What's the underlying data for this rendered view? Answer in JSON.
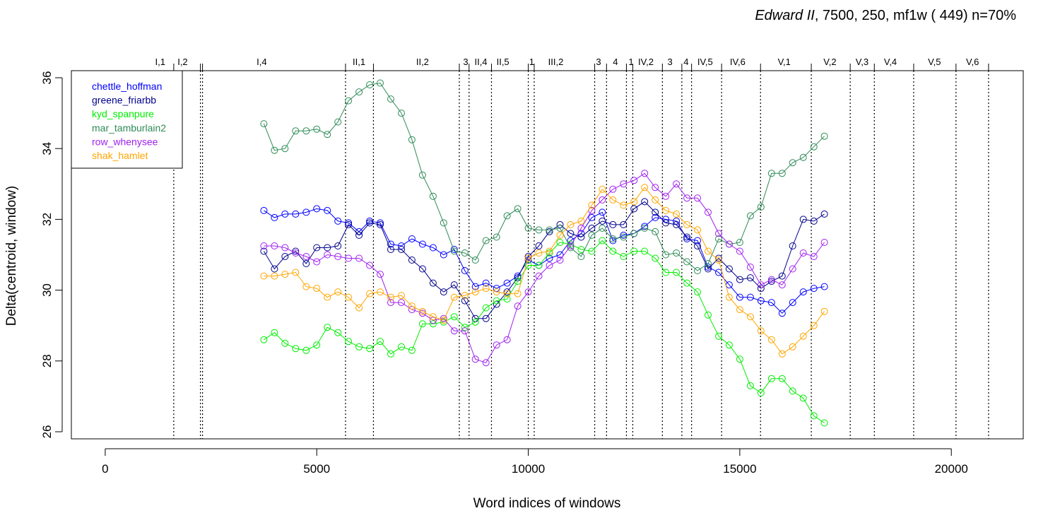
{
  "chart_data": {
    "type": "line",
    "title_italic": "Edward II",
    "title_rest": ", 7500, 250, mf1w ( 449)   n=70%",
    "xlabel": "Word indices of windows",
    "ylabel": "Delta(centroid, window)",
    "xlim": [
      -800,
      21700
    ],
    "ylim": [
      25.8,
      36.2
    ],
    "x_ticks": [
      0,
      5000,
      10000,
      15000,
      20000
    ],
    "y_ticks": [
      26,
      28,
      30,
      32,
      34,
      36
    ],
    "legend_position": "top-left",
    "x": [
      3750,
      4000,
      4250,
      4500,
      4750,
      5000,
      5250,
      5500,
      5750,
      6000,
      6250,
      6500,
      6750,
      7000,
      7250,
      7500,
      7750,
      8000,
      8250,
      8500,
      8750,
      9000,
      9250,
      9500,
      9750,
      10000,
      10250,
      10500,
      10750,
      11000,
      11250,
      11500,
      11750,
      12000,
      12250,
      12500,
      12750,
      13000,
      13250,
      13500,
      13750,
      14000,
      14250,
      14500,
      14750,
      15000,
      15250,
      15500,
      15750,
      16000,
      16250,
      16500,
      16750,
      17000
    ],
    "series": [
      {
        "name": "chettle_hoffman",
        "color": "#0000ff",
        "values": [
          32.25,
          32.05,
          32.15,
          32.15,
          32.2,
          32.3,
          32.25,
          31.95,
          31.9,
          31.65,
          31.95,
          31.9,
          31.3,
          31.25,
          31.45,
          31.3,
          31.2,
          31.0,
          31.15,
          30.55,
          30.1,
          30.2,
          30.05,
          30.2,
          30.4,
          30.85,
          30.7,
          30.9,
          31.0,
          31.4,
          31.6,
          32.05,
          32.2,
          31.4,
          31.55,
          31.6,
          31.8,
          32.05,
          32.0,
          31.95,
          31.45,
          31.4,
          30.65,
          30.5,
          30.15,
          29.8,
          29.8,
          29.7,
          29.65,
          29.35,
          29.65,
          29.95,
          30.05,
          30.1
        ]
      },
      {
        "name": "greene_friarbb",
        "color": "#00008b",
        "values": [
          31.1,
          30.6,
          30.95,
          31.1,
          30.75,
          31.2,
          31.2,
          31.25,
          31.85,
          31.55,
          31.9,
          31.85,
          31.15,
          31.15,
          30.85,
          30.6,
          30.2,
          29.95,
          30.15,
          29.7,
          29.2,
          29.2,
          29.6,
          29.95,
          30.35,
          30.95,
          31.25,
          31.65,
          31.85,
          31.6,
          31.5,
          31.75,
          31.95,
          31.85,
          31.85,
          32.3,
          32.5,
          32.2,
          31.9,
          31.85,
          31.5,
          31.25,
          30.6,
          30.9,
          30.6,
          30.3,
          30.35,
          30.05,
          30.25,
          30.4,
          31.25,
          32.0,
          31.95,
          32.15
        ]
      },
      {
        "name": "kyd_spanpure",
        "color": "#00ee00",
        "values": [
          28.6,
          28.8,
          28.5,
          28.35,
          28.3,
          28.45,
          28.95,
          28.8,
          28.55,
          28.4,
          28.35,
          28.55,
          28.2,
          28.4,
          28.3,
          29.05,
          29.05,
          29.1,
          29.25,
          28.95,
          29.1,
          29.5,
          29.7,
          29.75,
          30.25,
          30.7,
          30.7,
          31.05,
          31.35,
          31.3,
          31.15,
          31.1,
          31.4,
          31.1,
          30.95,
          31.1,
          31.1,
          30.9,
          30.5,
          30.5,
          30.2,
          29.95,
          29.3,
          28.7,
          28.45,
          28.05,
          27.3,
          27.1,
          27.5,
          27.5,
          27.15,
          26.95,
          26.45,
          26.25
        ]
      },
      {
        "name": "mar_tamburlain2",
        "color": "#2e8b57",
        "values": [
          34.7,
          33.95,
          34.0,
          34.5,
          34.5,
          34.55,
          34.4,
          34.75,
          35.35,
          35.6,
          35.8,
          35.85,
          35.4,
          35.0,
          34.25,
          33.25,
          32.65,
          31.9,
          31.1,
          31.05,
          30.85,
          31.4,
          31.5,
          32.1,
          32.3,
          31.75,
          31.7,
          31.7,
          31.75,
          31.2,
          30.95,
          31.55,
          31.75,
          31.45,
          31.5,
          31.6,
          31.75,
          31.65,
          31.0,
          31.05,
          30.8,
          30.55,
          30.75,
          31.45,
          31.3,
          31.35,
          32.1,
          32.35,
          33.3,
          33.3,
          33.6,
          33.75,
          34.05,
          34.35
        ]
      },
      {
        "name": "row_whenysee",
        "color": "#a020f0",
        "values": [
          31.25,
          31.25,
          31.2,
          31.05,
          30.95,
          30.8,
          31.0,
          30.95,
          30.9,
          30.9,
          30.7,
          30.45,
          29.65,
          29.65,
          29.45,
          29.35,
          29.15,
          29.2,
          28.85,
          28.85,
          28.05,
          27.95,
          28.45,
          28.6,
          29.55,
          29.95,
          30.4,
          30.7,
          30.85,
          31.25,
          31.75,
          32.25,
          32.55,
          32.85,
          33.0,
          33.1,
          33.3,
          32.9,
          32.65,
          33.0,
          32.6,
          32.6,
          32.2,
          31.6,
          31.3,
          31.1,
          30.65,
          30.15,
          30.3,
          30.15,
          30.6,
          31.05,
          30.95,
          31.35
        ]
      },
      {
        "name": "shak_hamlet",
        "color": "#ffa500",
        "values": [
          30.4,
          30.4,
          30.45,
          30.5,
          30.1,
          30.05,
          29.8,
          29.95,
          29.8,
          29.5,
          29.9,
          29.95,
          29.8,
          29.85,
          29.55,
          29.4,
          29.25,
          29.15,
          29.8,
          29.85,
          29.95,
          30.05,
          29.95,
          29.9,
          29.9,
          30.9,
          31.05,
          31.1,
          31.55,
          31.85,
          31.95,
          32.4,
          32.85,
          32.55,
          32.4,
          32.5,
          32.9,
          32.55,
          32.25,
          32.15,
          31.85,
          31.7,
          31.1,
          30.85,
          29.8,
          29.45,
          29.25,
          28.85,
          28.6,
          28.2,
          28.4,
          28.7,
          29.0,
          29.4
        ]
      }
    ],
    "scene_boundaries": [
      1620,
      2250,
      2300,
      5680,
      6340,
      8370,
      8600,
      9130,
      10000,
      10140,
      11570,
      11850,
      12320,
      12470,
      13170,
      13630,
      13860,
      14570,
      15490,
      16690,
      17610,
      18180,
      19110,
      20110,
      20880
    ],
    "scene_labels": [
      {
        "text": "I,1",
        "x": 1300
      },
      {
        "text": "I,2",
        "x": 1830
      },
      {
        "text": "I,4",
        "x": 3700
      },
      {
        "text": "II,1",
        "x": 6000
      },
      {
        "text": "II,2",
        "x": 7500
      },
      {
        "text": "3",
        "x": 8520
      },
      {
        "text": "II,4",
        "x": 8880
      },
      {
        "text": "II,5",
        "x": 9400
      },
      {
        "text": "1",
        "x": 10080
      },
      {
        "text": "III,2",
        "x": 10650
      },
      {
        "text": "3",
        "x": 11660
      },
      {
        "text": "4",
        "x": 12060
      },
      {
        "text": "1",
        "x": 12430
      },
      {
        "text": "IV,2",
        "x": 12780
      },
      {
        "text": "3",
        "x": 13350
      },
      {
        "text": "4",
        "x": 13730
      },
      {
        "text": "IV,5",
        "x": 14180
      },
      {
        "text": "IV,6",
        "x": 14950
      },
      {
        "text": "V,1",
        "x": 16050
      },
      {
        "text": "V,2",
        "x": 17130
      },
      {
        "text": "V,3",
        "x": 17890
      },
      {
        "text": "V,4",
        "x": 18560
      },
      {
        "text": "V,5",
        "x": 19600
      },
      {
        "text": "V,6",
        "x": 20500
      }
    ]
  }
}
